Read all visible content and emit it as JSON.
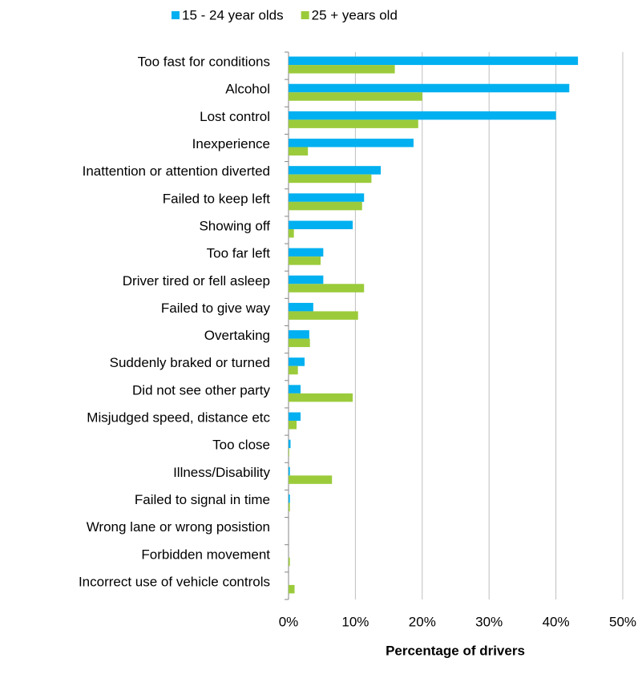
{
  "chart_data": {
    "type": "barh",
    "categories": [
      "Too fast for conditions",
      "Alcohol",
      "Lost control",
      "Inexperience",
      "Inattention or attention diverted",
      "Failed to keep left",
      "Showing off",
      "Too far left",
      "Driver tired or fell asleep",
      "Failed to give way",
      "Overtaking",
      "Suddenly braked or turned",
      "Did not see other party",
      "Misjudged speed, distance etc",
      "Too close",
      "Illness/Disability",
      "Failed to signal in time",
      "Wrong lane or wrong posistion",
      "Forbidden movement",
      "Incorrect use of vehicle controls"
    ],
    "series": [
      {
        "name": "15 - 24 year olds",
        "color": "#00b0f0",
        "values": [
          43.3,
          42.0,
          40.0,
          18.7,
          13.8,
          11.3,
          9.6,
          5.2,
          5.2,
          3.7,
          3.1,
          2.4,
          1.8,
          1.8,
          0.3,
          0.2,
          0.2,
          0,
          0,
          0
        ]
      },
      {
        "name": "25 + years old",
        "color": "#9bcb3b",
        "values": [
          15.9,
          20.0,
          19.4,
          2.9,
          12.4,
          11.0,
          0.8,
          4.8,
          11.3,
          10.4,
          3.2,
          1.4,
          9.6,
          1.2,
          0.1,
          6.5,
          0.2,
          0,
          0.2,
          0.9
        ]
      }
    ],
    "xlim": [
      0,
      50
    ],
    "xticks": [
      {
        "value": 0,
        "label": "0%"
      },
      {
        "value": 10,
        "label": "10%"
      },
      {
        "value": 20,
        "label": "20%"
      },
      {
        "value": 30,
        "label": "30%"
      },
      {
        "value": 40,
        "label": "40%"
      },
      {
        "value": 50,
        "label": "50%"
      }
    ],
    "xlabel": "Percentage of drivers",
    "grid": true,
    "legend": "top"
  }
}
